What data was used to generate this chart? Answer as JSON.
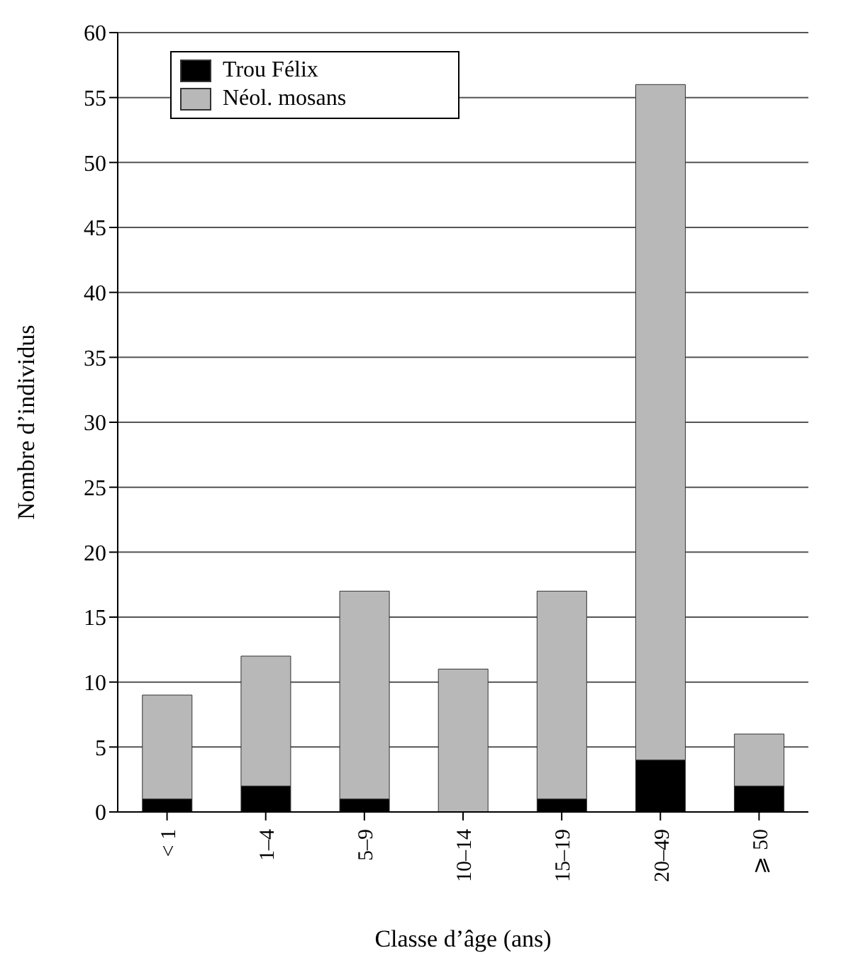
{
  "chart_data": {
    "type": "bar",
    "stacked": true,
    "xlabel": "Classe d’âge (ans)",
    "ylabel": "Nombre d’individus",
    "categories": [
      "< 1",
      "1–4",
      "5–9",
      "10–14",
      "15–19",
      "20–49",
      "⩾ 50"
    ],
    "series": [
      {
        "name": "Trou Félix",
        "color": "#000000",
        "values": [
          1,
          2,
          1,
          0,
          1,
          4,
          2
        ]
      },
      {
        "name": "Néol. mosans",
        "color": "#b8b8b8",
        "values": [
          8,
          10,
          16,
          11,
          16,
          52,
          4
        ]
      }
    ],
    "ylim": [
      0,
      60
    ],
    "yticks": [
      0,
      5,
      10,
      15,
      20,
      25,
      30,
      35,
      40,
      45,
      50,
      55,
      60
    ],
    "grid": "y",
    "legend": "top left"
  }
}
